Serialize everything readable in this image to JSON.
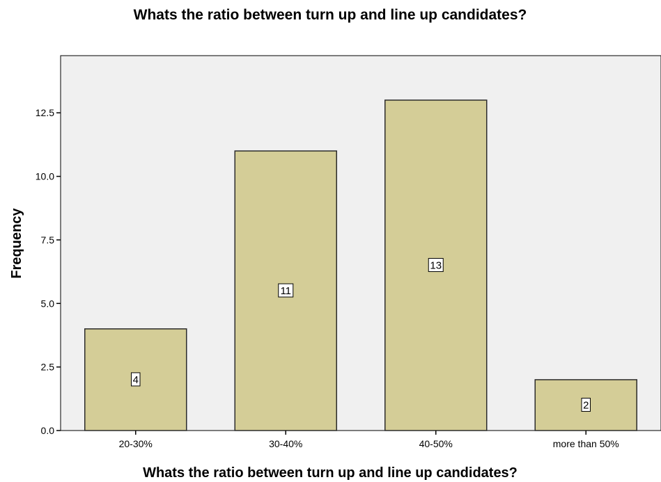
{
  "chart_data": {
    "type": "bar",
    "title": "Whats the ratio between turn up and line up candidates?",
    "xlabel": "Whats the ratio between turn up and line up candidates?",
    "ylabel": "Frequency",
    "categories": [
      "20-30%",
      "30-40%",
      "40-50%",
      "more than 50%"
    ],
    "values": [
      4,
      11,
      13,
      2
    ],
    "data_labels": [
      "4",
      "11",
      "13",
      "2"
    ],
    "ylim": [
      0,
      14.75
    ],
    "yticks": [
      0,
      2.5,
      5,
      7.5,
      10,
      12.5
    ],
    "ytick_labels": [
      "0.0",
      "2.5",
      "5.0",
      "7.5",
      "10.0",
      "12.5"
    ],
    "grid": false,
    "colors": {
      "bar_fill": "#d4cd97",
      "bar_stroke": "#2b2b2b",
      "plot_background": "#f0f0f0",
      "frame": "#000000"
    }
  }
}
